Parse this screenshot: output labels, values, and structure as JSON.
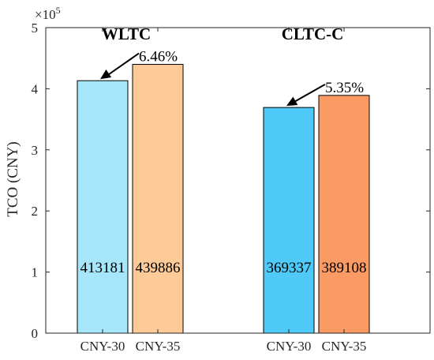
{
  "chart_data": {
    "type": "bar",
    "ylabel": "TCO (CNY)",
    "y_multiplier_base": "×10",
    "y_multiplier_exp": "5",
    "ylim": [
      0,
      500000
    ],
    "yticks": [
      0,
      100000,
      200000,
      300000,
      400000,
      500000
    ],
    "ytick_labels": [
      "0",
      "1",
      "2",
      "3",
      "4",
      "5"
    ],
    "grid": false,
    "groups": [
      {
        "title": "WLTC",
        "percent_label": "6.46%",
        "bars": [
          {
            "category": "CNY-30",
            "value": 413181,
            "label": "413181",
            "color": "#a5e6fa"
          },
          {
            "category": "CNY-35",
            "value": 439886,
            "label": "439886",
            "color": "#fdca98"
          }
        ]
      },
      {
        "title": "CLTC-C",
        "percent_label": "5.35%",
        "bars": [
          {
            "category": "CNY-30",
            "value": 369337,
            "label": "369337",
            "color": "#4fc9f7"
          },
          {
            "category": "CNY-35",
            "value": 389108,
            "label": "389108",
            "color": "#fb9a63"
          }
        ]
      }
    ]
  }
}
